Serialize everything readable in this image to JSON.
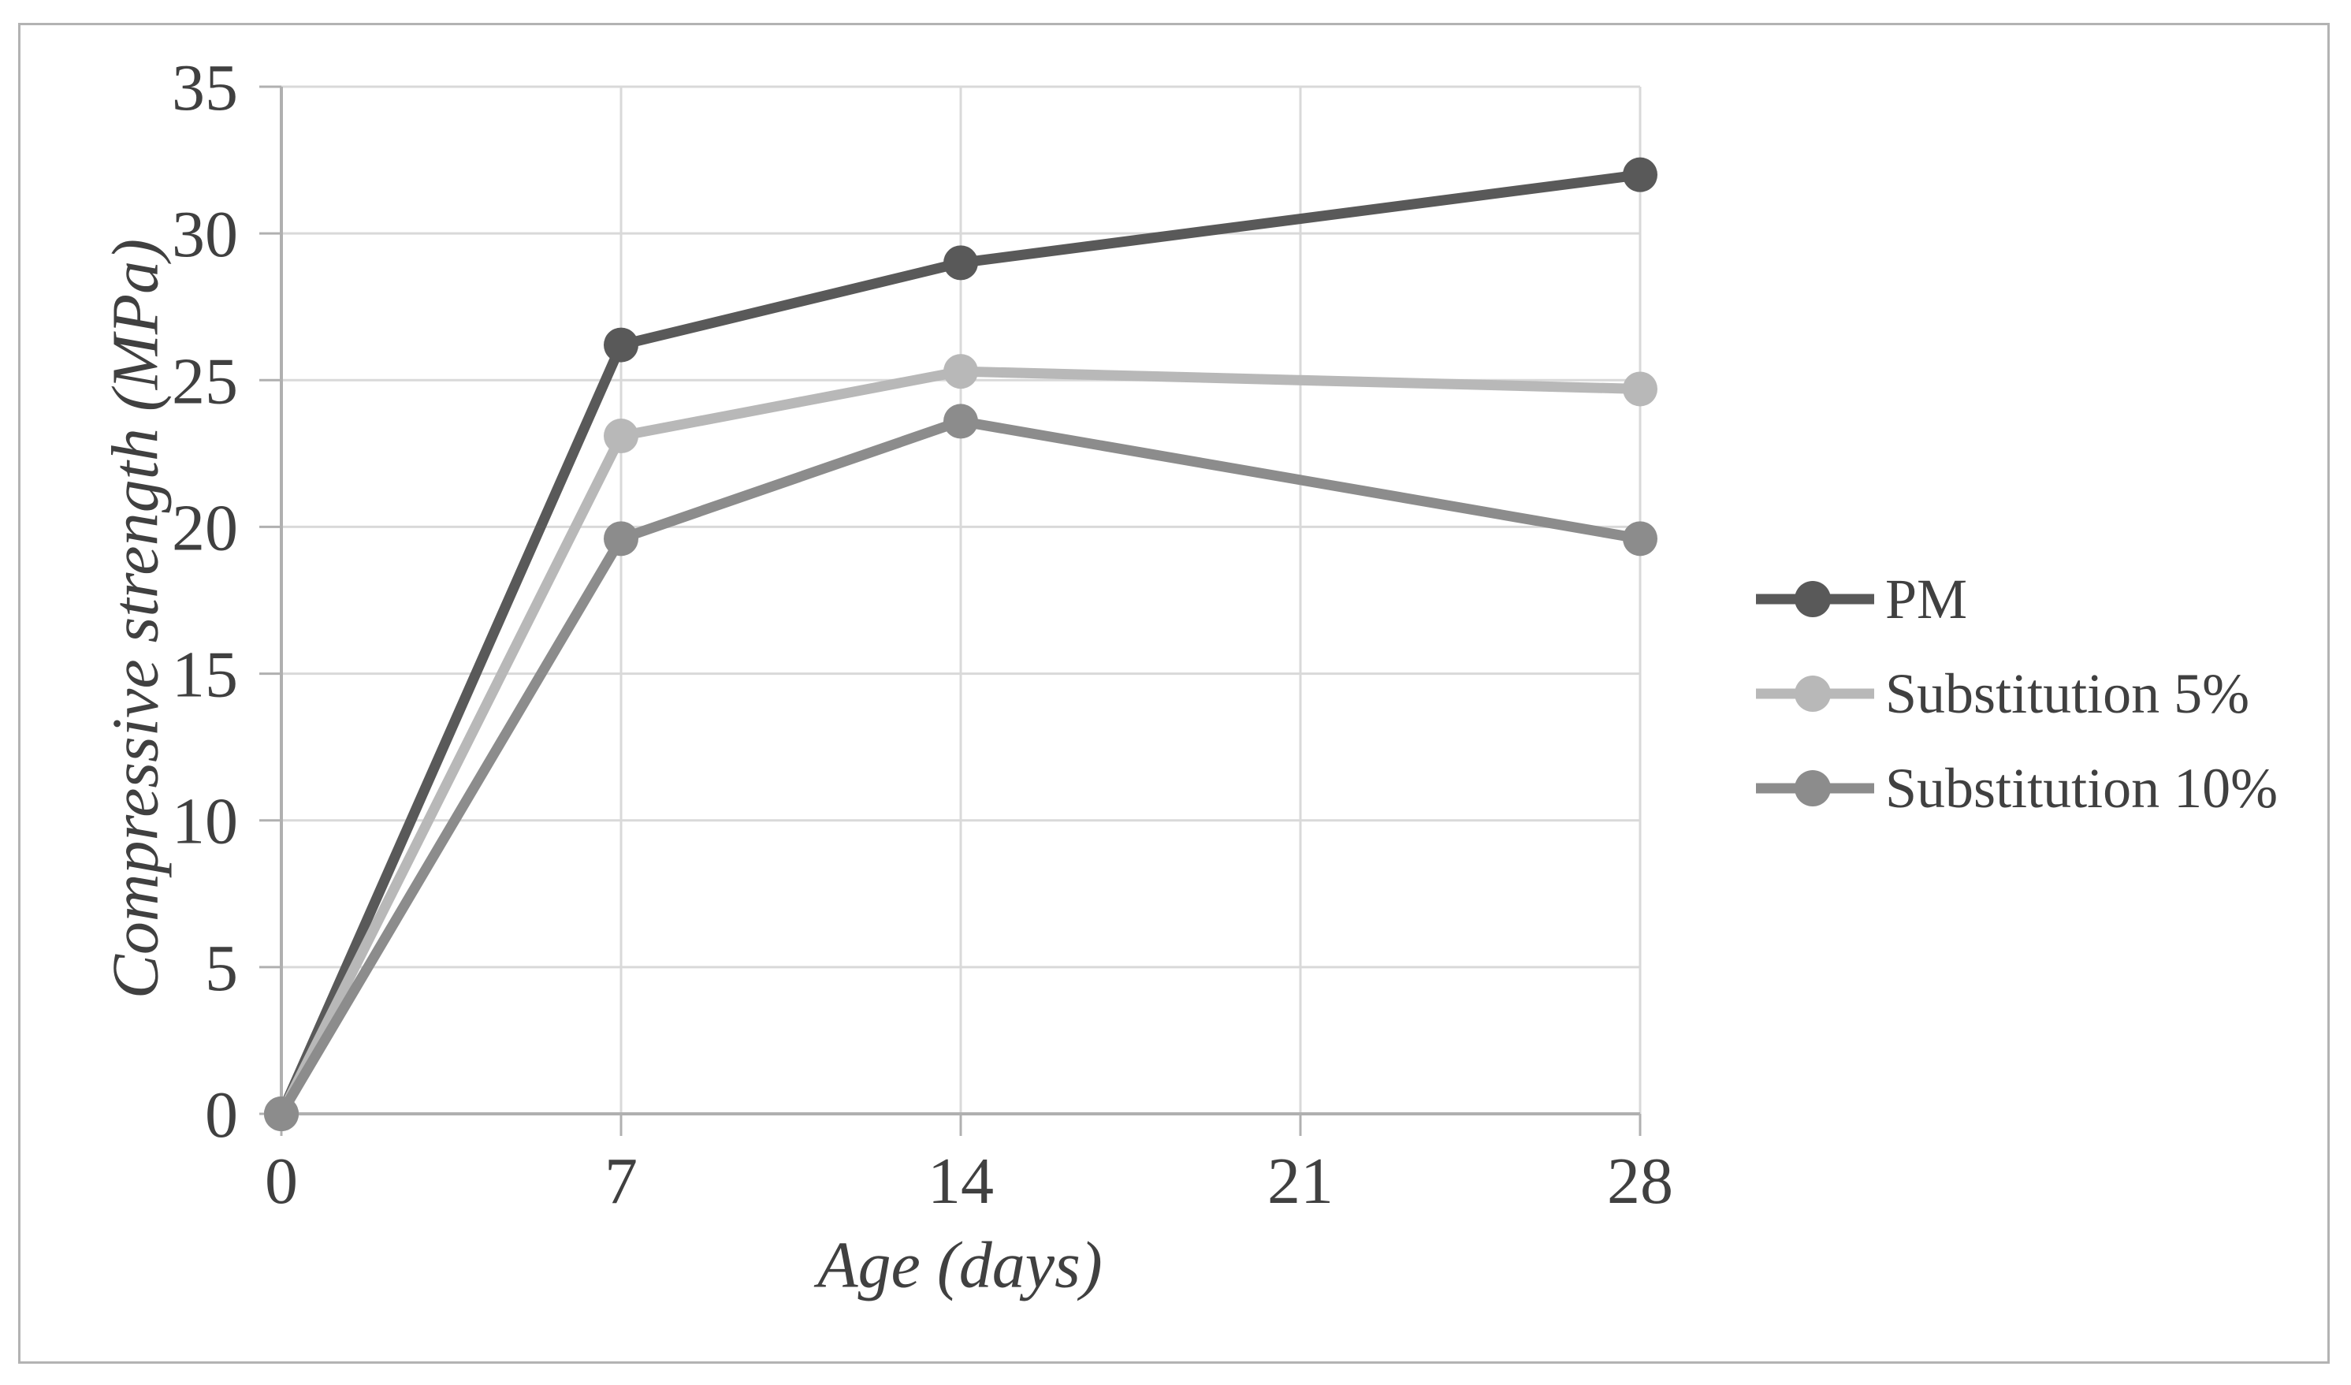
{
  "chart_data": {
    "type": "line",
    "title": "",
    "xlabel": "Age (days)",
    "ylabel": "Compressive strength (MPa)",
    "x": [
      0,
      7,
      14,
      28
    ],
    "xticks": [
      0,
      7,
      14,
      21,
      28
    ],
    "yticks": [
      0,
      5,
      10,
      15,
      20,
      25,
      30,
      35
    ],
    "xlim": [
      0,
      28
    ],
    "ylim": [
      0,
      35
    ],
    "grid": true,
    "marker": "circle",
    "legend_position": "right",
    "series": [
      {
        "name": "PM",
        "color": "#595959",
        "values": [
          0,
          26.2,
          29.0,
          32.0
        ]
      },
      {
        "name": "Substitution 5%",
        "color": "#b8b8b8",
        "values": [
          0,
          23.1,
          25.3,
          24.7
        ]
      },
      {
        "name": "Substitution 10%",
        "color": "#8c8c8c",
        "values": [
          0,
          19.6,
          23.6,
          19.6
        ]
      }
    ]
  },
  "colors": {
    "gridline": "#d9d9d9",
    "axis": "#b0b0b0",
    "tick": "#b0b0b0",
    "text": "#404040",
    "frame": "#b3b3b3",
    "background": "#ffffff"
  }
}
